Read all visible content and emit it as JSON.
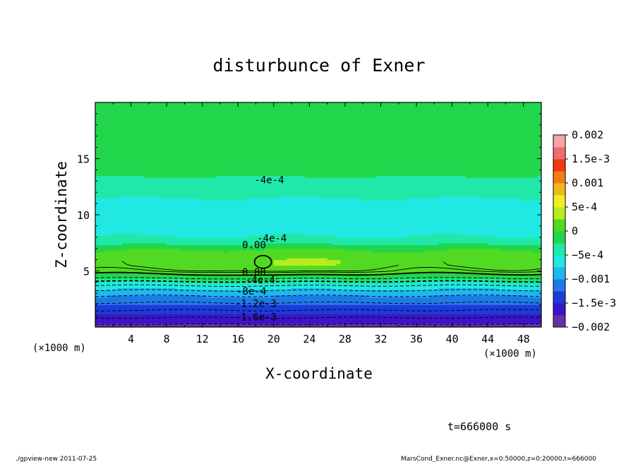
{
  "chart_data": {
    "type": "heatmap",
    "title": "disturbunce of Exner",
    "xlabel": "X-coordinate",
    "ylabel": "Z-coordinate",
    "x_unit": "(×1000 m)",
    "y_unit": "(×1000 m)",
    "xlim": [
      0,
      50
    ],
    "ylim": [
      0,
      20
    ],
    "x_ticks": [
      4,
      8,
      12,
      16,
      20,
      24,
      28,
      32,
      36,
      40,
      44,
      48
    ],
    "y_ticks": [
      5,
      10,
      15
    ],
    "colorbar": {
      "range": [
        -0.002,
        0.002
      ],
      "tick_labels": [
        "0.002",
        "1.5e-3",
        "0.001",
        "5e-4",
        "0",
        "−5e-4",
        "−0.001",
        "−1.5e-3",
        "−0.002"
      ],
      "tick_values": [
        0.002,
        0.0015,
        0.001,
        0.0005,
        0,
        -0.0005,
        -0.001,
        -0.0015,
        -0.002
      ]
    },
    "contour_labels": [
      {
        "text": "-4e-4",
        "x": 19.5,
        "z": 12.8
      },
      {
        "text": "-4e-4",
        "x": 19.8,
        "z": 7.6
      },
      {
        "text": "0.00",
        "x": 17.8,
        "z": 7.0
      },
      {
        "text": "0.00",
        "x": 17.8,
        "z": 4.6
      },
      {
        "text": "-4e-4",
        "x": 18.5,
        "z": 3.9
      },
      {
        "text": "-8e-4",
        "x": 17.5,
        "z": 2.9
      },
      {
        "text": "-1.2e-3",
        "x": 18.0,
        "z": 1.8
      },
      {
        "text": "-1.6e-3",
        "x": 18.0,
        "z": 0.6
      }
    ],
    "profile": [
      {
        "z": 0.0,
        "v": -0.0019
      },
      {
        "z": 0.5,
        "v": -0.0017
      },
      {
        "z": 1.0,
        "v": -0.00155
      },
      {
        "z": 1.5,
        "v": -0.0014
      },
      {
        "z": 2.0,
        "v": -0.00125
      },
      {
        "z": 2.5,
        "v": -0.0011
      },
      {
        "z": 3.0,
        "v": -0.00092
      },
      {
        "z": 3.5,
        "v": -0.0007
      },
      {
        "z": 4.0,
        "v": -0.00045
      },
      {
        "z": 4.5,
        "v": -0.0001
      },
      {
        "z": 5.0,
        "v": 0.0001
      },
      {
        "z": 5.5,
        "v": 0.00018
      },
      {
        "z": 6.0,
        "v": 0.00018
      },
      {
        "z": 6.5,
        "v": 0.0001
      },
      {
        "z": 7.0,
        "v": -5e-05
      },
      {
        "z": 7.5,
        "v": -0.00032
      },
      {
        "z": 8.0,
        "v": -0.00048
      },
      {
        "z": 8.5,
        "v": -0.00058
      },
      {
        "z": 9.5,
        "v": -0.00066
      },
      {
        "z": 10.5,
        "v": -0.0006
      },
      {
        "z": 11.5,
        "v": -0.0005
      },
      {
        "z": 12.5,
        "v": -0.00038
      },
      {
        "z": 13.5,
        "v": -0.00024
      },
      {
        "z": 15.0,
        "v": -0.00014
      },
      {
        "z": 17.0,
        "v": -8e-05
      },
      {
        "z": 20.0,
        "v": -5e-05
      }
    ]
  },
  "footer": {
    "time": "t=666000 s",
    "left": "./gpview-new  2011-07-25",
    "right": "MarsCond_Exner.nc@Exner,x=0:50000,z=0:20000,t=666000"
  },
  "colors": {
    "scale": [
      "#6a2fa8",
      "#3a16c8",
      "#1e3ad9",
      "#1f7ae8",
      "#1fb8ee",
      "#21e8e2",
      "#20e8a8",
      "#22d64c",
      "#52da22",
      "#b8ec1e",
      "#f0f020",
      "#f2b81a",
      "#f07e14",
      "#ee3a14",
      "#ee6c6c",
      "#f7a6a6"
    ]
  }
}
